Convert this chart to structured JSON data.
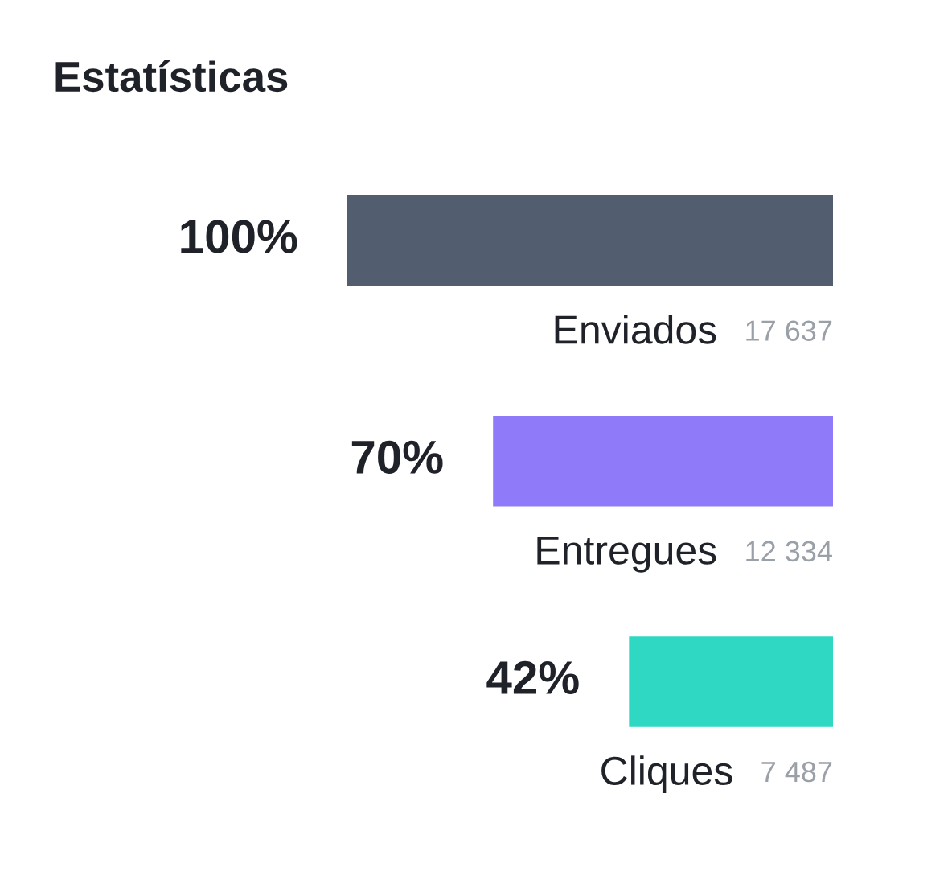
{
  "chart_data": {
    "type": "bar",
    "orientation": "horizontal",
    "title": "Estatísticas",
    "categories": [
      "Enviados",
      "Entregues",
      "Cliques"
    ],
    "values": [
      100,
      70,
      42
    ],
    "colors": [
      "#525e70",
      "#8f7afa",
      "#2ed8c3"
    ],
    "value_labels": [
      "100%",
      "70%",
      "42%"
    ],
    "annotations": [
      "17 637",
      "12 334",
      "7 487"
    ]
  }
}
